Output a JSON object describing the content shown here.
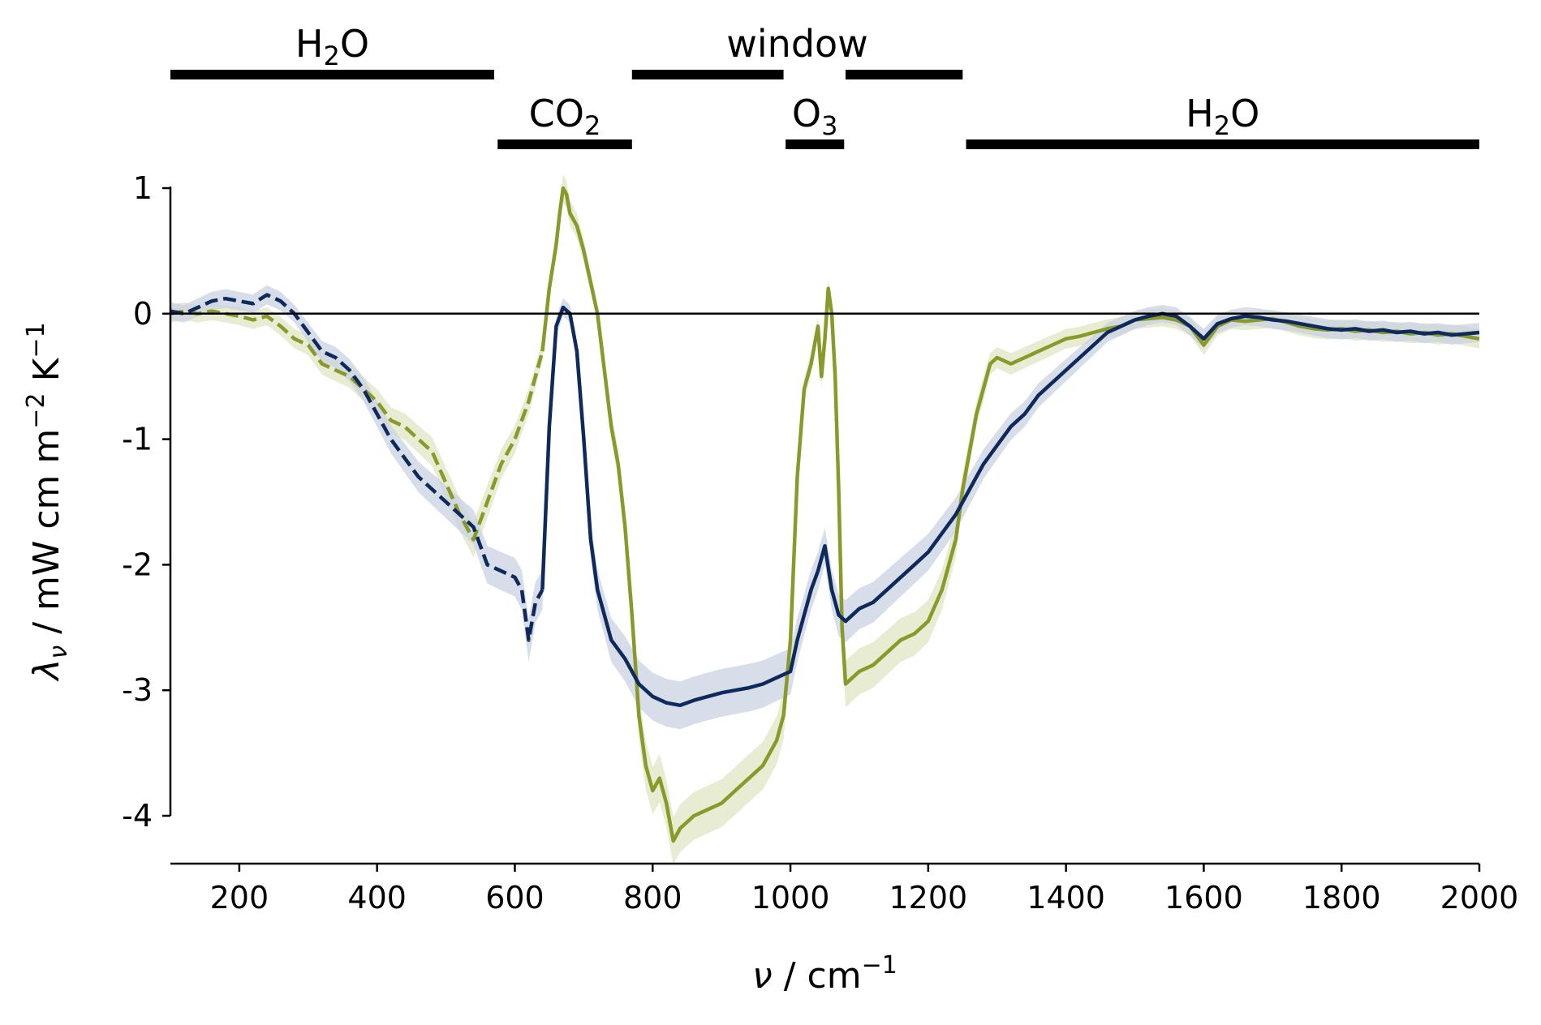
{
  "chart_data": {
    "type": "line",
    "xlabel": {
      "symbol": "ν",
      "sep": " / cm",
      "sup": "−1"
    },
    "ylabel": {
      "symbol": "λ",
      "sub": "ν",
      "sep": " / mW cm m",
      "sup1": "−2",
      "unit2": " K",
      "sup2": "−1"
    },
    "xlim": [
      100,
      2000
    ],
    "ylim": [
      -4.4,
      1.0
    ],
    "xticks": [
      200,
      400,
      600,
      800,
      1000,
      1200,
      1400,
      1600,
      1800,
      2000
    ],
    "xtick_labels": [
      "200",
      "400",
      "600",
      "800",
      "1000",
      "1200",
      "1400",
      "1600",
      "1800",
      "2000"
    ],
    "yticks": [
      1,
      0,
      -1,
      -2,
      -3,
      -4
    ],
    "ytick_labels": [
      "1",
      "0",
      "-1",
      "-2",
      "-3",
      "-4"
    ],
    "zero_line": 0,
    "grid": false,
    "legend": "none",
    "bands": [
      {
        "label": {
          "base": "H",
          "sub": "2",
          "rest": "O"
        },
        "row": "upper",
        "range": [
          100,
          570
        ]
      },
      {
        "label": {
          "base": "CO",
          "sub": "2",
          "rest": ""
        },
        "row": "lower",
        "range": [
          575,
          770
        ]
      },
      {
        "label": {
          "base": "window",
          "sub": "",
          "rest": ""
        },
        "row": "upper",
        "range": [
          770,
          1250
        ],
        "segments": [
          [
            770,
            990
          ],
          [
            1080,
            1250
          ]
        ]
      },
      {
        "label": {
          "base": "O",
          "sub": "3",
          "rest": ""
        },
        "row": "lower",
        "range": [
          993,
          1078
        ]
      },
      {
        "label": {
          "base": "H",
          "sub": "2",
          "rest": "O"
        },
        "row": "lower",
        "range": [
          1255,
          2000
        ]
      }
    ],
    "series": [
      {
        "color": "#8a9a2a",
        "band_color": "#dfe6c4",
        "dashed_until": 640,
        "x": [
          100,
          120,
          140,
          160,
          180,
          200,
          220,
          240,
          260,
          280,
          300,
          320,
          340,
          360,
          380,
          400,
          420,
          440,
          460,
          480,
          500,
          520,
          540,
          560,
          580,
          600,
          620,
          630,
          640,
          650,
          660,
          665,
          670,
          675,
          680,
          690,
          700,
          720,
          740,
          750,
          760,
          770,
          780,
          790,
          800,
          810,
          820,
          830,
          840,
          860,
          880,
          900,
          920,
          940,
          960,
          980,
          990,
          1000,
          1010,
          1020,
          1030,
          1040,
          1045,
          1050,
          1055,
          1060,
          1065,
          1070,
          1075,
          1080,
          1090,
          1100,
          1120,
          1140,
          1160,
          1180,
          1200,
          1220,
          1240,
          1250,
          1260,
          1270,
          1280,
          1290,
          1300,
          1320,
          1340,
          1360,
          1380,
          1400,
          1420,
          1440,
          1460,
          1480,
          1500,
          1520,
          1540,
          1560,
          1580,
          1600,
          1620,
          1640,
          1660,
          1680,
          1700,
          1720,
          1740,
          1760,
          1780,
          1800,
          1820,
          1840,
          1860,
          1880,
          1900,
          1920,
          1940,
          1960,
          1980,
          2000
        ],
        "y": [
          0.0,
          0.02,
          0.0,
          0.02,
          0.0,
          -0.02,
          -0.05,
          -0.02,
          -0.1,
          -0.2,
          -0.25,
          -0.4,
          -0.45,
          -0.5,
          -0.6,
          -0.7,
          -0.85,
          -0.9,
          -1.0,
          -1.1,
          -1.35,
          -1.6,
          -1.8,
          -1.5,
          -1.2,
          -1.0,
          -0.7,
          -0.5,
          -0.3,
          0.2,
          0.55,
          0.8,
          1.0,
          0.95,
          0.8,
          0.7,
          0.5,
          0.0,
          -0.9,
          -1.2,
          -1.7,
          -2.4,
          -3.2,
          -3.6,
          -3.8,
          -3.7,
          -3.9,
          -4.2,
          -4.1,
          -4.0,
          -3.95,
          -3.9,
          -3.8,
          -3.7,
          -3.6,
          -3.4,
          -3.2,
          -2.6,
          -1.3,
          -0.6,
          -0.4,
          -0.1,
          -0.5,
          -0.2,
          0.2,
          0.0,
          -0.5,
          -1.4,
          -2.5,
          -2.95,
          -2.9,
          -2.85,
          -2.8,
          -2.7,
          -2.6,
          -2.55,
          -2.45,
          -2.2,
          -1.8,
          -1.4,
          -1.1,
          -0.8,
          -0.6,
          -0.4,
          -0.35,
          -0.4,
          -0.35,
          -0.3,
          -0.25,
          -0.2,
          -0.18,
          -0.15,
          -0.12,
          -0.1,
          -0.05,
          -0.04,
          -0.03,
          -0.05,
          -0.1,
          -0.25,
          -0.1,
          -0.05,
          -0.06,
          -0.05,
          -0.04,
          -0.07,
          -0.1,
          -0.12,
          -0.13,
          -0.12,
          -0.14,
          -0.13,
          -0.15,
          -0.14,
          -0.16,
          -0.15,
          -0.17,
          -0.16,
          -0.18,
          -0.2
        ]
      },
      {
        "color": "#0e2a5c",
        "band_color": "#c9d3e3",
        "dashed_until": 640,
        "x": [
          100,
          120,
          140,
          160,
          180,
          200,
          220,
          240,
          260,
          280,
          300,
          320,
          340,
          360,
          380,
          400,
          420,
          440,
          460,
          480,
          500,
          520,
          540,
          560,
          580,
          600,
          610,
          620,
          630,
          640,
          650,
          660,
          670,
          680,
          690,
          700,
          710,
          720,
          740,
          760,
          780,
          800,
          820,
          840,
          860,
          880,
          900,
          920,
          940,
          960,
          980,
          1000,
          1010,
          1020,
          1030,
          1040,
          1050,
          1060,
          1070,
          1080,
          1090,
          1100,
          1120,
          1140,
          1160,
          1180,
          1200,
          1220,
          1240,
          1260,
          1280,
          1300,
          1320,
          1340,
          1360,
          1380,
          1400,
          1420,
          1440,
          1460,
          1480,
          1500,
          1520,
          1540,
          1560,
          1580,
          1600,
          1620,
          1640,
          1660,
          1680,
          1700,
          1720,
          1740,
          1760,
          1780,
          1800,
          1820,
          1840,
          1860,
          1880,
          1900,
          1920,
          1940,
          1960,
          1980,
          2000
        ],
        "y": [
          0.02,
          0.0,
          0.05,
          0.1,
          0.12,
          0.1,
          0.08,
          0.15,
          0.1,
          0.0,
          -0.15,
          -0.3,
          -0.35,
          -0.45,
          -0.6,
          -0.8,
          -1.0,
          -1.15,
          -1.3,
          -1.4,
          -1.5,
          -1.6,
          -1.7,
          -2.0,
          -2.05,
          -2.1,
          -2.2,
          -2.6,
          -2.3,
          -2.2,
          -0.9,
          -0.1,
          0.05,
          0.0,
          -0.3,
          -1.0,
          -1.8,
          -2.2,
          -2.6,
          -2.75,
          -2.95,
          -3.05,
          -3.1,
          -3.12,
          -3.08,
          -3.05,
          -3.02,
          -3.0,
          -2.98,
          -2.95,
          -2.9,
          -2.85,
          -2.6,
          -2.4,
          -2.2,
          -2.05,
          -1.85,
          -2.2,
          -2.4,
          -2.45,
          -2.4,
          -2.35,
          -2.3,
          -2.2,
          -2.1,
          -2.0,
          -1.9,
          -1.75,
          -1.6,
          -1.4,
          -1.2,
          -1.05,
          -0.9,
          -0.8,
          -0.65,
          -0.55,
          -0.45,
          -0.35,
          -0.25,
          -0.15,
          -0.1,
          -0.05,
          -0.02,
          0.0,
          -0.02,
          -0.1,
          -0.2,
          -0.08,
          -0.04,
          -0.02,
          -0.03,
          -0.05,
          -0.06,
          -0.08,
          -0.1,
          -0.12,
          -0.13,
          -0.12,
          -0.14,
          -0.13,
          -0.15,
          -0.14,
          -0.16,
          -0.15,
          -0.17,
          -0.16,
          -0.15
        ]
      }
    ]
  }
}
